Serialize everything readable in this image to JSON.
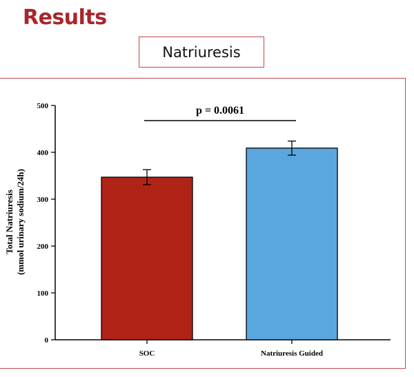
{
  "slide": {
    "title": "Results",
    "subtitle": "Natriuresis"
  },
  "colors": {
    "title": "#a8262b",
    "box_border": "#b8484b",
    "soc_bar": "#b02418",
    "guided_bar": "#5aa7e0"
  },
  "chart_data": {
    "type": "bar",
    "title": "",
    "categories": [
      "SOC",
      "Natriuresis Guided"
    ],
    "values": [
      347,
      409
    ],
    "errors": [
      16,
      15
    ],
    "bar_colors": [
      "#b02418",
      "#5aa7e0"
    ],
    "ylabel_line1": "Total Natriuresis",
    "ylabel_line2": "(mmol urinary sodium/24h)",
    "xlabel": "",
    "ylim": [
      0,
      500
    ],
    "yticks": [
      0,
      100,
      200,
      300,
      400,
      500
    ],
    "annotation": "p = 0.0061",
    "legend": "none",
    "grid": false
  }
}
